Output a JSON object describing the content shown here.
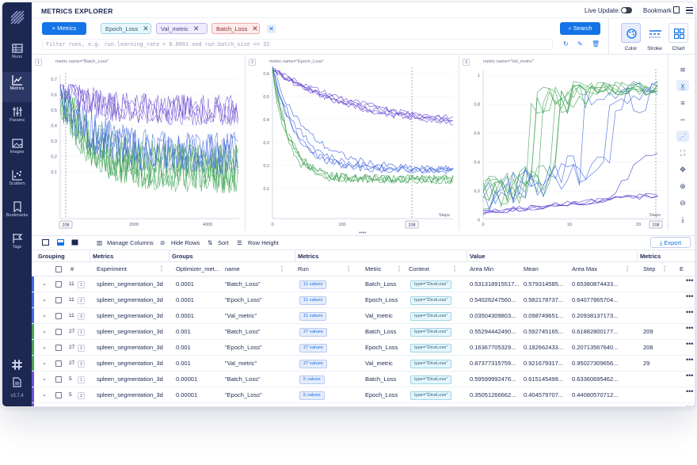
{
  "app": {
    "page_title": "METRICS EXPLORER",
    "live_update_label": "Live Update:",
    "bookmark_label": "Bookmark",
    "version": "v3.7.4",
    "colors": {
      "navy": "#1c2852",
      "accent": "#1473e6",
      "green": "#41a456",
      "purple": "#6e51d4",
      "blue": "#4268e0"
    }
  },
  "sidebar": {
    "items": [
      {
        "label": "Runs",
        "icon": "table-icon"
      },
      {
        "label": "Metrics",
        "icon": "line-chart-icon"
      },
      {
        "label": "Params",
        "icon": "params-icon"
      },
      {
        "label": "Images",
        "icon": "image-icon"
      },
      {
        "label": "Scatters",
        "icon": "scatter-icon"
      },
      {
        "label": "Bookmarks",
        "icon": "bookmark-icon"
      },
      {
        "label": "Tags",
        "icon": "flag-icon"
      }
    ]
  },
  "query": {
    "metrics_button": "Metrics",
    "chips": [
      "Epoch_Loss",
      "Val_metric",
      "Batch_Loss"
    ],
    "filter_placeholder": "Filter runs, e.g. run.learning_rate > 0.0001 and run.batch_size == 32",
    "search_button": "Search",
    "tools": [
      "Color",
      "Stroke",
      "Chart"
    ]
  },
  "charts": [
    {
      "num": "1",
      "title": "metric.name=\"Batch_Loss\"",
      "y_ticks": [
        "0.7",
        "0.6",
        "0.5",
        "0.4",
        "0.3",
        "0.2",
        "0.1"
      ],
      "x_ticks": [
        "2000",
        "4000"
      ],
      "cursor_label": "208"
    },
    {
      "num": "2",
      "title": "metric.name=\"Epoch_Loss\"",
      "y_ticks": [
        "0.6",
        "0.5",
        "0.4",
        "0.3",
        "0.2",
        "0.1"
      ],
      "x_ticks": [
        "0",
        "100",
        "200"
      ],
      "cursor_label": "208",
      "x_axis_name": "Steps"
    },
    {
      "num": "3",
      "title": "metric.name=\"Val_metric\"",
      "y_ticks": [
        "1",
        "0.8",
        "0.6",
        "0.4",
        "0.2",
        "0"
      ],
      "x_ticks": [
        "0",
        "10",
        "20"
      ],
      "cursor_label": "208",
      "x_axis_name": "Steps"
    }
  ],
  "table_toolbar": {
    "manage_columns": "Manage Columns",
    "hide_rows": "Hide Rows",
    "sort": "Sort",
    "row_height": "Row Height",
    "export": "Export"
  },
  "table": {
    "group_headers": [
      "Grouping",
      "Metrics",
      "Groups",
      "Metrics",
      "Value",
      "Metrics"
    ],
    "columns": [
      "#",
      "Experiment",
      "Optimizer_met...",
      "name",
      "Run",
      "Metric",
      "Context",
      "Area Min",
      "Mean",
      "Area Max",
      "Step",
      "E"
    ],
    "rows": [
      {
        "group": "11",
        "idx": "1",
        "color": "#4268e0",
        "experiment": "spleen_segmentation_3d",
        "opt": "0.0001",
        "name": "\"Batch_Loss\"",
        "run": "11 values",
        "metric": "Batch_Loss",
        "context": "type=\"DiceLoss\"",
        "area_min": "0.531318915517...",
        "mean": "0.579314585...",
        "area_max": "0.65380874433...",
        "step": ""
      },
      {
        "group": "11",
        "idx": "2",
        "color": "#4268e0",
        "experiment": "spleen_segmentation_3d",
        "opt": "0.0001",
        "name": "\"Epoch_Loss\"",
        "run": "11 values",
        "metric": "Epoch_Loss",
        "context": "type=\"DiceLoss\"",
        "area_min": "0.54026247560...",
        "mean": "0.582178737...",
        "area_max": "0.64077865704...",
        "step": ""
      },
      {
        "group": "11",
        "idx": "3",
        "color": "#4268e0",
        "experiment": "spleen_segmentation_3d",
        "opt": "0.0001",
        "name": "\"Val_metric\"",
        "run": "11 values",
        "metric": "Val_metric",
        "context": "type=\"DiceLoss\"",
        "area_min": "0.03504309803...",
        "mean": "0.098749651...",
        "area_max": "0.20938137173...",
        "step": ""
      },
      {
        "group": "27",
        "idx": "1",
        "color": "#41a456",
        "experiment": "spleen_segmentation_3d",
        "opt": "0.001",
        "name": "\"Batch_Loss\"",
        "run": "27 values",
        "metric": "Batch_Loss",
        "context": "type=\"DiceLoss\"",
        "area_min": "0.55294442490...",
        "mean": "0.592745165...",
        "area_max": "0.61882800177...",
        "step": "209"
      },
      {
        "group": "27",
        "idx": "2",
        "color": "#41a456",
        "experiment": "spleen_segmentation_3d",
        "opt": "0.001",
        "name": "\"Epoch_Loss\"",
        "run": "27 values",
        "metric": "Epoch_Loss",
        "context": "type=\"DiceLoss\"",
        "area_min": "0.16367705329...",
        "mean": "0.182662433...",
        "area_max": "0.20713567640...",
        "step": "208"
      },
      {
        "group": "27",
        "idx": "3",
        "color": "#41a456",
        "experiment": "spleen_segmentation_3d",
        "opt": "0.001",
        "name": "\"Val_metric\"",
        "run": "27 values",
        "metric": "Val_metric",
        "context": "type=\"DiceLoss\"",
        "area_min": "0.87377315759...",
        "mean": "0.921679317...",
        "area_max": "0.95027309656...",
        "step": "29"
      },
      {
        "group": "5",
        "idx": "1",
        "color": "#6e51d4",
        "experiment": "spleen_segmentation_3d",
        "opt": "0.00001",
        "name": "\"Batch_Loss\"",
        "run": "5 values",
        "metric": "Batch_Loss",
        "context": "type=\"DiceLoss\"",
        "area_min": "0.59599992476...",
        "mean": "0.615145499...",
        "area_max": "0.63360695462...",
        "step": ""
      },
      {
        "group": "5",
        "idx": "2",
        "color": "#6e51d4",
        "experiment": "spleen_segmentation_3d",
        "opt": "0.00001",
        "name": "\"Epoch_Loss\"",
        "run": "5 values",
        "metric": "Epoch_Loss",
        "context": "type=\"DiceLoss\"",
        "area_min": "0.35051266662...",
        "mean": "0.404579707...",
        "area_max": "0.44080570712...",
        "step": ""
      },
      {
        "group": "5",
        "idx": "3",
        "color": "#6e51d4",
        "experiment": "spleen_segmentation_3d",
        "opt": "0.00001",
        "name": "\"Val_metric\"",
        "run": "5 values",
        "metric": "Val_metric",
        "context": "type=\"DiceLoss\"",
        "area_min": "0.05518418863...",
        "mean": "0.217979498...",
        "area_max": "0.41354591922...",
        "step": ""
      }
    ]
  }
}
